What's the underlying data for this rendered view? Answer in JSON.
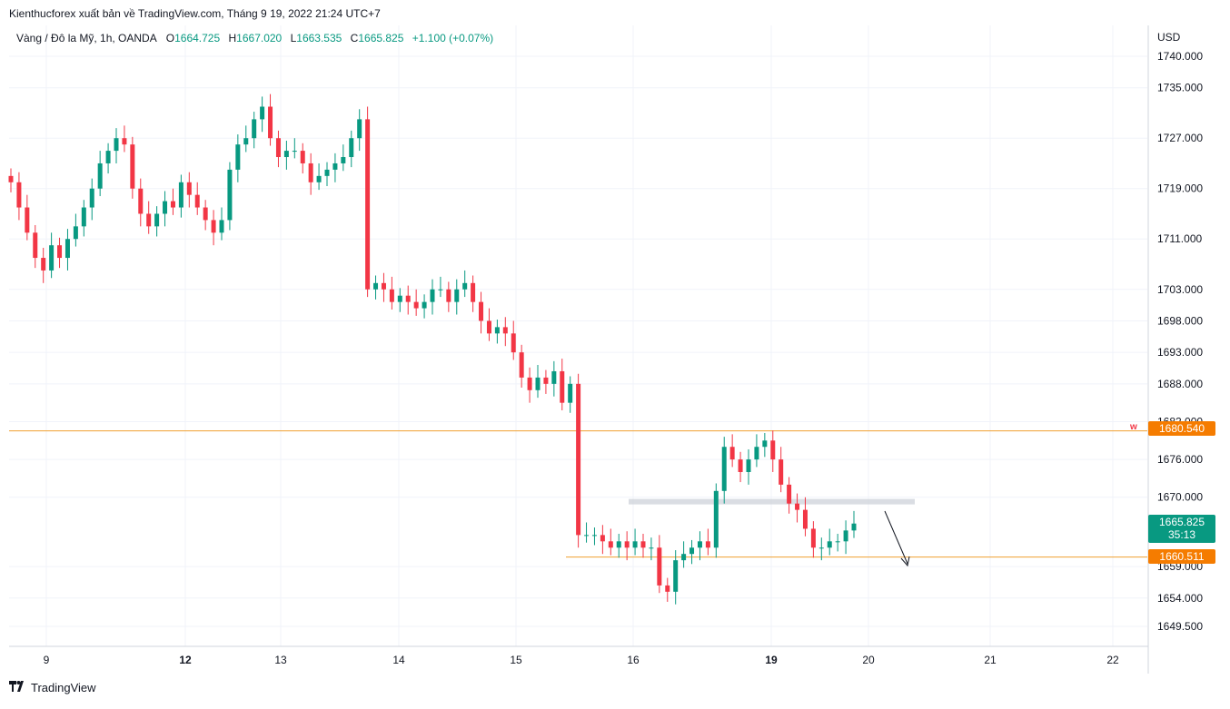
{
  "header": {
    "publisher": "Kienthucforex xuất bản về TradingView.com, Tháng 9 19, 2022 21:24 UTC+7"
  },
  "legend": {
    "symbol": "Vàng / Đô la Mỹ, 1h, OANDA",
    "o_label": "O",
    "o_value": "1664.725",
    "h_label": "H",
    "h_value": "1667.020",
    "l_label": "L",
    "l_value": "1663.535",
    "c_label": "C",
    "c_value": "1665.825",
    "change": "+1.100 (+0.07%)"
  },
  "axis": {
    "currency": "USD"
  },
  "tags": {
    "resistance_value": "1680.540",
    "resistance_marker": "w",
    "current_value": "1665.825",
    "countdown": "35:13",
    "support_value": "1660.511"
  },
  "footer": {
    "brand": "TradingView"
  },
  "colors": {
    "up": "#089981",
    "down": "#f23645",
    "level": "#f0a030",
    "zone": "#d1d4dc"
  },
  "chart_data": {
    "type": "candlestick",
    "title": "Vàng / Đô la Mỹ, 1h, OANDA",
    "ylim": [
      1645,
      1744
    ],
    "y_ticks": [
      {
        "value": 1740,
        "label": "1740.000"
      },
      {
        "value": 1735,
        "label": "1735.000"
      },
      {
        "value": 1727,
        "label": "1727.000"
      },
      {
        "value": 1719,
        "label": "1719.000"
      },
      {
        "value": 1711,
        "label": "1711.000"
      },
      {
        "value": 1703,
        "label": "1703.000"
      },
      {
        "value": 1698,
        "label": "1698.000"
      },
      {
        "value": 1693,
        "label": "1693.000"
      },
      {
        "value": 1688,
        "label": "1688.000"
      },
      {
        "value": 1682,
        "label": "1682.000"
      },
      {
        "value": 1676,
        "label": "1676.000"
      },
      {
        "value": 1670,
        "label": "1670.000"
      },
      {
        "value": 1659,
        "label": "1659.000"
      },
      {
        "value": 1654,
        "label": "1654.000"
      },
      {
        "value": 1649.5,
        "label": "1649.500"
      }
    ],
    "x_ticks": [
      {
        "label": "9",
        "bold": false
      },
      {
        "label": "12",
        "bold": true
      },
      {
        "label": "13",
        "bold": false
      },
      {
        "label": "14",
        "bold": false
      },
      {
        "label": "15",
        "bold": false
      },
      {
        "label": "16",
        "bold": false
      },
      {
        "label": "19",
        "bold": true
      },
      {
        "label": "20",
        "bold": false
      },
      {
        "label": "21",
        "bold": false
      },
      {
        "label": "22",
        "bold": false
      }
    ],
    "levels": [
      {
        "name": "resistance",
        "value": 1680.54
      },
      {
        "name": "support",
        "value": 1660.511
      }
    ],
    "zone": {
      "value": 1669.3
    },
    "closes": [
      1720,
      1716,
      1712,
      1708,
      1706,
      1710,
      1708,
      1711,
      1713,
      1716,
      1719,
      1723,
      1725,
      1727,
      1726,
      1719,
      1715,
      1713,
      1715,
      1717,
      1716,
      1720,
      1718,
      1716,
      1714,
      1712,
      1714,
      1722,
      1726,
      1727,
      1730,
      1732,
      1727,
      1724,
      1725,
      1725,
      1723,
      1720,
      1721,
      1722,
      1723,
      1724,
      1727,
      1730,
      1703,
      1704,
      1703,
      1701,
      1702,
      1701,
      1700,
      1701,
      1703,
      1703,
      1701,
      1703,
      1704,
      1701,
      1698,
      1696,
      1697,
      1696,
      1693,
      1689,
      1687,
      1689,
      1688,
      1690,
      1685,
      1688,
      1664,
      1664,
      1664,
      1663,
      1662,
      1663,
      1662,
      1663,
      1662,
      1662,
      1656,
      1655,
      1660,
      1661,
      1662,
      1663,
      1662,
      1671,
      1678,
      1676,
      1674,
      1676,
      1678,
      1679,
      1676,
      1672,
      1669,
      1668,
      1665,
      1662,
      1662,
      1663,
      1663,
      1664.725,
      1665.825
    ]
  }
}
